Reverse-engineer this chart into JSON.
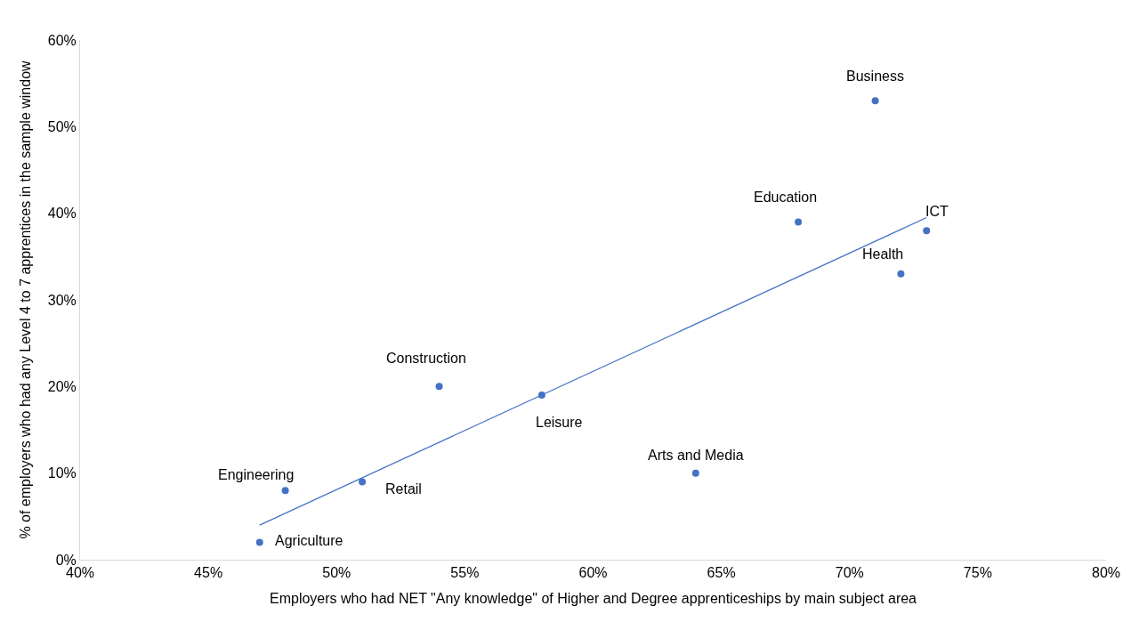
{
  "chart_data": {
    "type": "scatter",
    "xlabel": "Employers who had NET \"Any knowledge\" of Higher and Degree apprenticeships by main subject area",
    "ylabel": "% of employers who had any Level 4 to 7 apprentices in the sample window",
    "x": [
      71,
      68,
      73,
      72,
      54,
      58,
      64,
      48,
      51,
      47
    ],
    "series": [
      {
        "color": "#4472c4",
        "values": [
          53,
          39,
          38,
          33,
          20,
          19,
          10,
          8,
          9,
          2
        ],
        "marker": "circle"
      },
      {
        "type": "line",
        "color": "#4472c4",
        "x": [
          47,
          73
        ],
        "values": [
          4,
          39.5
        ],
        "line_style": "solid"
      }
    ],
    "annotations": [
      {
        "text": "Business",
        "x": 71,
        "y": 53
      },
      {
        "text": "Education",
        "x": 68,
        "y": 39
      },
      {
        "text": "ICT",
        "x": 73,
        "y": 38
      },
      {
        "text": "Health",
        "x": 72,
        "y": 33
      },
      {
        "text": "Construction",
        "x": 54,
        "y": 20
      },
      {
        "text": "Leisure",
        "x": 58,
        "y": 19
      },
      {
        "text": "Arts and Media",
        "x": 64,
        "y": 10
      },
      {
        "text": "Engineering",
        "x": 48,
        "y": 8
      },
      {
        "text": "Retail",
        "x": 51,
        "y": 9
      },
      {
        "text": "Agriculture",
        "x": 47,
        "y": 2
      }
    ],
    "xlim": [
      40,
      80
    ],
    "xticks": [
      {
        "value": 40,
        "label": "40%"
      },
      {
        "value": 45,
        "label": "45%"
      },
      {
        "value": 50,
        "label": "50%"
      },
      {
        "value": 55,
        "label": "55%"
      },
      {
        "value": 60,
        "label": "60%"
      },
      {
        "value": 65,
        "label": "65%"
      },
      {
        "value": 70,
        "label": "70%"
      },
      {
        "value": 75,
        "label": "75%"
      },
      {
        "value": 80,
        "label": "80%"
      }
    ],
    "ylim": [
      0,
      60
    ],
    "yticks": [
      {
        "value": 0,
        "label": "0%"
      },
      {
        "value": 10,
        "label": "10%"
      },
      {
        "value": 20,
        "label": "20%"
      },
      {
        "value": 30,
        "label": "30%"
      },
      {
        "value": 40,
        "label": "40%"
      },
      {
        "value": 50,
        "label": "50%"
      },
      {
        "value": 60,
        "label": "60%"
      }
    ],
    "grid": false
  }
}
